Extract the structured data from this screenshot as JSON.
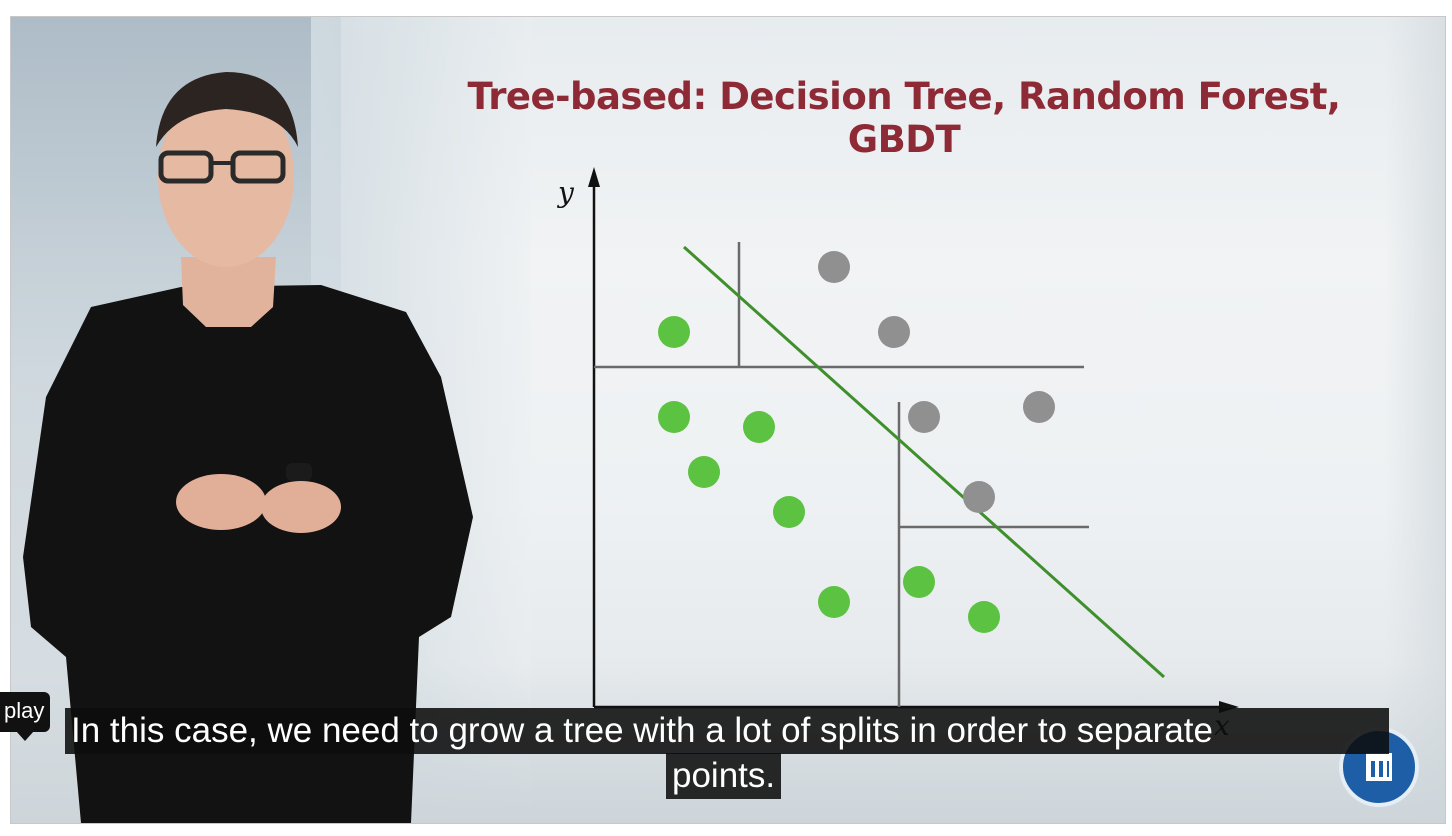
{
  "video": {
    "slide_title": "Tree-based: Decision Tree, Random Forest, GBDT",
    "tooltip": "play",
    "subtitle_line1": "In this case, we need to grow a tree with a lot of splits in order to separate",
    "subtitle_line2": "points.",
    "logo_icon": "university-logo-icon"
  },
  "colors": {
    "title": "#8e2a35",
    "green_points": "#5cc241",
    "gray_points": "#909090",
    "diagonal": "#3f8f2c"
  },
  "chart_data": {
    "type": "scatter",
    "title": "",
    "xlabel": "x",
    "ylabel": "y",
    "xlim": [
      0,
      10
    ],
    "ylim": [
      0,
      10
    ],
    "series": [
      {
        "name": "green",
        "points": [
          [
            1.6,
            7.5
          ],
          [
            1.6,
            5.8
          ],
          [
            3.3,
            5.6
          ],
          [
            2.2,
            4.7
          ],
          [
            3.9,
            3.9
          ],
          [
            4.8,
            2.1
          ],
          [
            6.5,
            2.5
          ],
          [
            7.8,
            1.8
          ]
        ]
      },
      {
        "name": "gray",
        "points": [
          [
            4.8,
            8.8
          ],
          [
            6.0,
            7.5
          ],
          [
            6.6,
            5.8
          ],
          [
            8.9,
            6.0
          ],
          [
            7.7,
            4.2
          ]
        ]
      }
    ],
    "splits": [
      {
        "orientation": "horizontal",
        "value": 6.8,
        "from": 0,
        "to": 9.8
      },
      {
        "orientation": "vertical",
        "value": 2.9,
        "from": 6.8,
        "to": 9.3
      },
      {
        "orientation": "vertical",
        "value": 6.1,
        "from": 0,
        "to": 6.1
      },
      {
        "orientation": "horizontal",
        "value": 3.6,
        "from": 6.1,
        "to": 9.9
      }
    ],
    "diagonal": [
      [
        1.8,
        9.2
      ],
      [
        11.4,
        0.6
      ]
    ]
  }
}
